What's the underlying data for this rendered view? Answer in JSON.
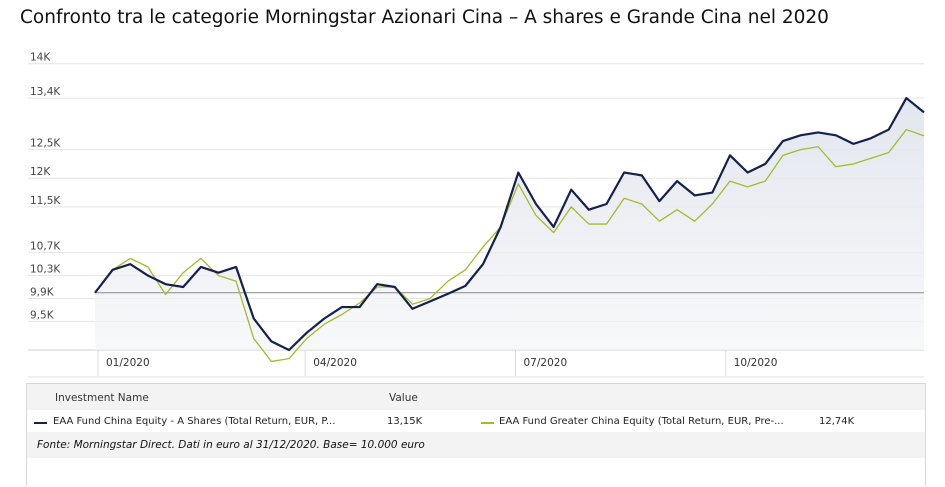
{
  "title": "Confronto tra le categorie Morningstar Azionari Cina – A shares e Grande Cina nel 2020",
  "chart_data": {
    "type": "line",
    "title": "Confronto tra le categorie Morningstar Azionari Cina – A shares e Grande Cina nel 2020",
    "y_ticks": [
      {
        "value": 14000,
        "label": "14K"
      },
      {
        "value": 13400,
        "label": "13,4K"
      },
      {
        "value": 12500,
        "label": "12,5K"
      },
      {
        "value": 12000,
        "label": "12K"
      },
      {
        "value": 11500,
        "label": "11,5K"
      },
      {
        "value": 10700,
        "label": "10,7K"
      },
      {
        "value": 10300,
        "label": "10,3K"
      },
      {
        "value": 9900,
        "label": "9,9K"
      },
      {
        "value": 9500,
        "label": "9,5K"
      }
    ],
    "x_ticks": [
      "01/2020",
      "04/2020",
      "07/2020",
      "10/2020"
    ],
    "ylim": [
      9000,
      14100
    ],
    "baseline": 10000,
    "grid": true,
    "x": [
      0,
      1,
      2,
      3,
      4,
      5,
      6,
      7,
      8,
      9,
      10,
      11,
      12,
      13,
      14,
      15,
      16,
      17,
      18,
      19,
      20,
      21,
      22,
      23,
      24,
      25,
      26,
      27,
      28,
      29,
      30,
      31,
      32,
      33,
      34,
      35,
      36,
      37,
      38,
      39,
      40,
      41,
      42,
      43,
      44,
      45,
      46,
      47
    ],
    "series": [
      {
        "name": "EAA Fund China Equity - A Shares (Total Return, EUR, P...",
        "color": "#14214d",
        "value_label": "13,15K",
        "values": [
          10000,
          10400,
          10500,
          10300,
          10150,
          10100,
          10450,
          10350,
          10450,
          9550,
          9150,
          9000,
          9300,
          9550,
          9750,
          9750,
          10150,
          10100,
          9720,
          9850,
          9980,
          10120,
          10500,
          11150,
          12100,
          11550,
          11150,
          11800,
          11450,
          11550,
          12100,
          12050,
          11600,
          11950,
          11700,
          11750,
          12400,
          12100,
          12250,
          12650,
          12750,
          12800,
          12750,
          12600,
          12700,
          12850,
          13400,
          13150
        ],
        "fill": true
      },
      {
        "name": "EAA Fund Greater China Equity (Total Return, EUR, Pre-...",
        "color": "#a4bb2a",
        "value_label": "12,74K",
        "values": [
          10000,
          10400,
          10600,
          10450,
          9970,
          10350,
          10600,
          10300,
          10200,
          9200,
          8800,
          8850,
          9200,
          9450,
          9620,
          9820,
          10100,
          10100,
          9800,
          9900,
          10200,
          10400,
          10800,
          11150,
          11900,
          11350,
          11050,
          11500,
          11200,
          11200,
          11650,
          11550,
          11250,
          11450,
          11250,
          11550,
          11950,
          11850,
          11950,
          12400,
          12500,
          12550,
          12200,
          12250,
          12350,
          12450,
          12850,
          12740
        ],
        "fill": false
      }
    ],
    "legend_headers": {
      "name": "Investment Name",
      "value": "Value"
    },
    "source": "Fonte: Morningstar Direct. Dati in euro al 31/12/2020. Base= 10.000 euro"
  }
}
